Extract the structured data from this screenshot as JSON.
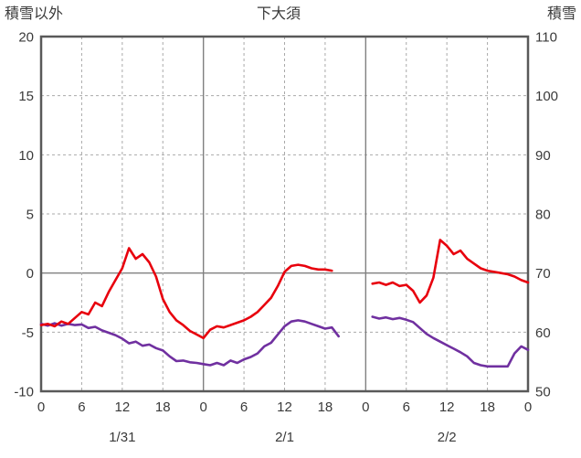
{
  "colors": {
    "border": "#595959",
    "grid_dashed": "#a9a9a9",
    "grid_solid": "#808080",
    "text": "#3a3a3a",
    "red_line": "#e8000d",
    "purple_line": "#7030a0"
  },
  "chart_data": {
    "type": "line",
    "title": "下大須",
    "legend": "none",
    "grid": true,
    "left_axis": {
      "label": "積雪以外",
      "min": -10,
      "max": 20,
      "ticks": [
        20,
        15,
        10,
        5,
        0,
        -5,
        -10
      ]
    },
    "right_axis": {
      "label": "積雪",
      "min": 50,
      "max": 110,
      "ticks": [
        110,
        100,
        90,
        80,
        70,
        60,
        50
      ]
    },
    "x_axis": {
      "total_hours": 72,
      "tick_interval": 6,
      "hour_labels": [
        0,
        6,
        12,
        18,
        0,
        6,
        12,
        18,
        0,
        6,
        12,
        18,
        0
      ],
      "day_labels": [
        {
          "label": "1/31",
          "center_hour": 12
        },
        {
          "label": "2/1",
          "center_hour": 36
        },
        {
          "label": "2/2",
          "center_hour": 60
        }
      ]
    },
    "series": [
      {
        "name": "purple-line",
        "axis": "right",
        "color": "#7030a0",
        "values_by_hour": [
          61.4,
          61.1,
          61.5,
          61.1,
          61.4,
          61.2,
          61.3,
          60.7,
          60.9,
          60.3,
          59.9,
          59.5,
          58.9,
          58.1,
          58.4,
          57.7,
          57.9,
          57.3,
          56.9,
          55.9,
          55.1,
          55.2,
          54.9,
          54.8,
          54.6,
          54.4,
          54.8,
          54.4,
          55.2,
          54.8,
          55.4,
          55.8,
          56.4,
          57.6,
          58.2,
          59.6,
          61.0,
          61.8,
          62.0,
          61.8,
          61.4,
          61.0,
          60.6,
          60.8,
          59.3,
          null,
          null,
          null,
          null,
          62.6,
          62.3,
          62.5,
          62.2,
          62.4,
          62.1,
          61.7,
          60.7,
          59.7,
          59.0,
          58.4,
          57.8,
          57.2,
          56.6,
          55.9,
          54.8,
          54.4,
          54.2,
          54.2,
          54.2,
          54.2,
          56.4,
          57.6,
          57.0
        ]
      },
      {
        "name": "red-line",
        "axis": "left",
        "color": "#e8000d",
        "values_by_hour": [
          -4.4,
          -4.3,
          -4.5,
          -4.1,
          -4.3,
          -3.8,
          -3.3,
          -3.5,
          -2.5,
          -2.8,
          -1.6,
          -0.6,
          0.4,
          2.1,
          1.2,
          1.6,
          0.9,
          -0.3,
          -2.2,
          -3.3,
          -4.0,
          -4.4,
          -4.9,
          -5.2,
          -5.5,
          -4.8,
          -4.5,
          -4.6,
          -4.4,
          -4.2,
          -4.0,
          -3.7,
          -3.3,
          -2.7,
          -2.1,
          -1.1,
          0.1,
          0.6,
          0.7,
          0.6,
          0.4,
          0.3,
          0.3,
          0.2,
          null,
          null,
          null,
          null,
          null,
          -0.9,
          -0.8,
          -1.0,
          -0.8,
          -1.1,
          -1.0,
          -1.5,
          -2.5,
          -1.9,
          -0.4,
          2.8,
          2.3,
          1.6,
          1.9,
          1.2,
          0.8,
          0.4,
          0.2,
          0.1,
          0.0,
          -0.1,
          -0.3,
          -0.6,
          -0.8
        ]
      }
    ]
  }
}
